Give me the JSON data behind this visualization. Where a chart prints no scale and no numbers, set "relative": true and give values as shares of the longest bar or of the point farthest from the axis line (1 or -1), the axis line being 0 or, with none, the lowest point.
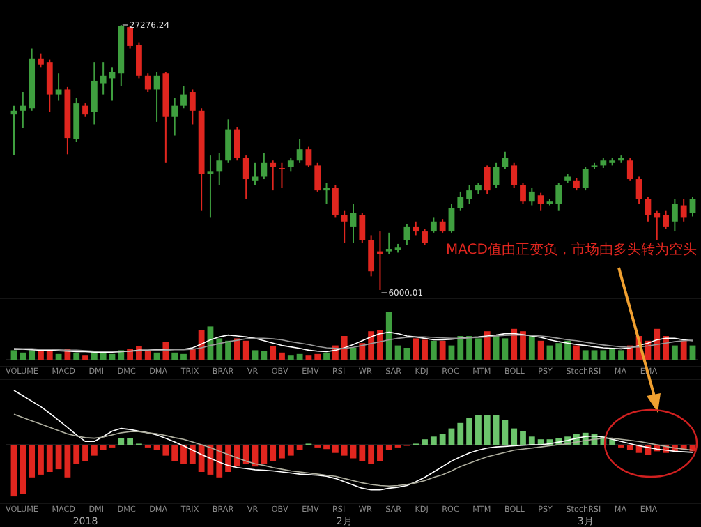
{
  "chart_data": [
    {
      "type": "candlestick",
      "categories": [
        null,
        null,
        null,
        null,
        null,
        null,
        null,
        null,
        null,
        null,
        null,
        null,
        null,
        null,
        null,
        null,
        null,
        null,
        null,
        null,
        null,
        null,
        null,
        null,
        null,
        null,
        null,
        null,
        null,
        null,
        null,
        null,
        null,
        null,
        null,
        null,
        null,
        null,
        null,
        null,
        null,
        null,
        null,
        null,
        null,
        null,
        null,
        null,
        null,
        null,
        null,
        null,
        null,
        null,
        null,
        null,
        null,
        null,
        null,
        null,
        null,
        null,
        null,
        null,
        null,
        null,
        null,
        null,
        null,
        null,
        null,
        null,
        null,
        null,
        null,
        null,
        null
      ],
      "ohlc": [
        [
          20100,
          20800,
          16800,
          20400
        ],
        [
          20400,
          21900,
          19000,
          20800
        ],
        [
          20600,
          25400,
          20400,
          24600
        ],
        [
          24600,
          25000,
          23900,
          24100
        ],
        [
          24300,
          24500,
          20300,
          21700
        ],
        [
          21700,
          23400,
          21200,
          22100
        ],
        [
          22100,
          22300,
          16900,
          18200
        ],
        [
          18100,
          21400,
          17900,
          21000
        ],
        [
          20800,
          21000,
          19900,
          20100
        ],
        [
          20300,
          24300,
          19300,
          22800
        ],
        [
          22600,
          24300,
          21700,
          23200
        ],
        [
          23000,
          23900,
          21200,
          23500
        ],
        [
          23400,
          27276.24,
          22400,
          27200
        ],
        [
          27100,
          27200,
          25400,
          25600
        ],
        [
          25700,
          25900,
          23000,
          23200
        ],
        [
          23200,
          23400,
          21900,
          22100
        ],
        [
          22100,
          23500,
          19500,
          23200
        ],
        [
          23400,
          23500,
          16200,
          19900
        ],
        [
          19900,
          21400,
          18400,
          20800
        ],
        [
          20800,
          22400,
          20600,
          21700
        ],
        [
          21900,
          22100,
          19300,
          20400
        ],
        [
          20400,
          20600,
          12400,
          15300
        ],
        [
          15300,
          16800,
          11800,
          15500
        ],
        [
          15500,
          17000,
          14400,
          16400
        ],
        [
          16400,
          19700,
          16200,
          18900
        ],
        [
          18900,
          19100,
          16400,
          16600
        ],
        [
          16600,
          16800,
          13300,
          14900
        ],
        [
          14800,
          16200,
          14400,
          15100
        ],
        [
          15100,
          17000,
          14900,
          16200
        ],
        [
          16200,
          16400,
          14000,
          15900
        ],
        [
          15800,
          16200,
          14200,
          15700
        ],
        [
          15900,
          16600,
          15500,
          16400
        ],
        [
          16400,
          18100,
          16200,
          17300
        ],
        [
          17300,
          17500,
          15900,
          16000
        ],
        [
          16000,
          16200,
          13900,
          14000
        ],
        [
          14000,
          14600,
          12900,
          14200
        ],
        [
          14200,
          14400,
          11800,
          12000
        ],
        [
          12000,
          12400,
          9800,
          11500
        ],
        [
          11100,
          12900,
          9800,
          12200
        ],
        [
          12000,
          12200,
          9800,
          10000
        ],
        [
          10000,
          10400,
          7100,
          7500
        ],
        [
          9100,
          10700,
          6000.01,
          8900
        ],
        [
          9100,
          10600,
          8900,
          9300
        ],
        [
          9200,
          9700,
          9000,
          9400
        ],
        [
          10000,
          11300,
          9600,
          11100
        ],
        [
          11100,
          11500,
          10400,
          10700
        ],
        [
          10700,
          10900,
          9600,
          9800
        ],
        [
          10700,
          11800,
          10600,
          11500
        ],
        [
          11500,
          11700,
          10600,
          10700
        ],
        [
          10700,
          12900,
          10600,
          12600
        ],
        [
          12600,
          13900,
          12400,
          13500
        ],
        [
          13300,
          14400,
          12900,
          14000
        ],
        [
          14000,
          14600,
          13700,
          14400
        ],
        [
          15900,
          16000,
          13700,
          14000
        ],
        [
          14400,
          16200,
          14200,
          15900
        ],
        [
          15900,
          17100,
          15700,
          16600
        ],
        [
          16000,
          16200,
          14200,
          14400
        ],
        [
          14400,
          14600,
          12900,
          13100
        ],
        [
          13100,
          14200,
          12800,
          13900
        ],
        [
          13600,
          13800,
          12400,
          12900
        ],
        [
          12900,
          13300,
          12800,
          13100
        ],
        [
          12900,
          14600,
          12400,
          14400
        ],
        [
          14800,
          15300,
          14600,
          15100
        ],
        [
          14800,
          15000,
          14000,
          14200
        ],
        [
          14200,
          15900,
          14000,
          15700
        ],
        [
          15900,
          16200,
          15700,
          16000
        ],
        [
          16000,
          16600,
          15800,
          16400
        ],
        [
          16200,
          16600,
          16000,
          16400
        ],
        [
          16400,
          16800,
          16200,
          16600
        ],
        [
          16400,
          16600,
          14800,
          14900
        ],
        [
          14900,
          15100,
          12900,
          13300
        ],
        [
          13300,
          13500,
          11500,
          12000
        ],
        [
          12200,
          12400,
          10000,
          11800
        ],
        [
          12000,
          12400,
          10900,
          11100
        ],
        [
          11500,
          13300,
          10700,
          12900
        ],
        [
          12800,
          13300,
          11500,
          11800
        ],
        [
          12200,
          13500,
          11900,
          13300
        ]
      ],
      "colors": [
        "#3f9f3f",
        "#3f9f3f",
        "#3f9f3f",
        "#e0261f",
        "#e0261f",
        "#3f9f3f",
        "#e0261f",
        "#3f9f3f",
        "#e0261f",
        "#3f9f3f",
        "#3f9f3f",
        "#3f9f3f",
        "#3f9f3f",
        "#e0261f",
        "#e0261f",
        "#e0261f",
        "#3f9f3f",
        "#e0261f",
        "#3f9f3f",
        "#3f9f3f",
        "#e0261f",
        "#e0261f",
        "#3f9f3f",
        "#3f9f3f",
        "#3f9f3f",
        "#e0261f",
        "#e0261f",
        "#3f9f3f",
        "#3f9f3f",
        "#e0261f",
        "#e0261f",
        "#3f9f3f",
        "#3f9f3f",
        "#e0261f",
        "#e0261f",
        "#3f9f3f",
        "#e0261f",
        "#e0261f",
        "#3f9f3f",
        "#e0261f",
        "#e0261f",
        "#e0261f",
        "#3f9f3f",
        "#3f9f3f",
        "#3f9f3f",
        "#e0261f",
        "#e0261f",
        "#3f9f3f",
        "#e0261f",
        "#3f9f3f",
        "#3f9f3f",
        "#3f9f3f",
        "#3f9f3f",
        "#e0261f",
        "#3f9f3f",
        "#3f9f3f",
        "#e0261f",
        "#e0261f",
        "#3f9f3f",
        "#e0261f",
        "#3f9f3f",
        "#3f9f3f",
        "#3f9f3f",
        "#e0261f",
        "#3f9f3f",
        "#3f9f3f",
        "#3f9f3f",
        "#3f9f3f",
        "#3f9f3f",
        "#e0261f",
        "#e0261f",
        "#e0261f",
        "#e0261f",
        "#e0261f",
        "#3f9f3f",
        "#e0261f",
        "#3f9f3f"
      ],
      "annotations": [
        "27276.24",
        "6000.01",
        "MACD值由正变负，市场由多头转为空头"
      ]
    },
    {
      "type": "bar",
      "relative": true,
      "categories": [
        null,
        null,
        null,
        null,
        null,
        null,
        null,
        null,
        null,
        null,
        null,
        null,
        null,
        null,
        null,
        null,
        null,
        null,
        null,
        null,
        null,
        null,
        null,
        null,
        null,
        null,
        null,
        null,
        null,
        null,
        null,
        null,
        null,
        null,
        null,
        null,
        null,
        null,
        null,
        null,
        null,
        null,
        null,
        null,
        null,
        null,
        null,
        null,
        null,
        null,
        null,
        null,
        null,
        null,
        null,
        null,
        null,
        null,
        null,
        null,
        null,
        null,
        null,
        null,
        null,
        null,
        null,
        null,
        null,
        null,
        null,
        null,
        null,
        null,
        null,
        null,
        null
      ],
      "series": [
        {
          "type": "bar",
          "values": [
            0.2,
            0.15,
            0.2,
            0.2,
            0.18,
            0.12,
            0.22,
            0.15,
            0.1,
            0.18,
            0.15,
            0.12,
            0.2,
            0.22,
            0.28,
            0.2,
            0.15,
            0.38,
            0.15,
            0.12,
            0.22,
            0.62,
            0.7,
            0.45,
            0.4,
            0.45,
            0.4,
            0.2,
            0.18,
            0.28,
            0.15,
            0.1,
            0.12,
            0.1,
            0.12,
            0.15,
            0.3,
            0.5,
            0.25,
            0.35,
            0.6,
            0.62,
            1,
            0.3,
            0.25,
            0.45,
            0.42,
            0.4,
            0.4,
            0.3,
            0.5,
            0.5,
            0.45,
            0.6,
            0.5,
            0.45,
            0.65,
            0.6,
            0.5,
            0.4,
            0.3,
            0.35,
            0.4,
            0.3,
            0.2,
            0.2,
            0.2,
            0.25,
            0.2,
            0.3,
            0.5,
            0.4,
            0.65,
            0.5,
            0.3,
            0.4,
            0.3
          ],
          "colors": [
            "#3f9f3f",
            "#3f9f3f",
            "#3f9f3f",
            "#e0261f",
            "#e0261f",
            "#3f9f3f",
            "#e0261f",
            "#3f9f3f",
            "#e0261f",
            "#3f9f3f",
            "#3f9f3f",
            "#3f9f3f",
            "#3f9f3f",
            "#e0261f",
            "#e0261f",
            "#e0261f",
            "#3f9f3f",
            "#e0261f",
            "#3f9f3f",
            "#3f9f3f",
            "#e0261f",
            "#e0261f",
            "#3f9f3f",
            "#3f9f3f",
            "#3f9f3f",
            "#e0261f",
            "#e0261f",
            "#3f9f3f",
            "#3f9f3f",
            "#e0261f",
            "#e0261f",
            "#3f9f3f",
            "#3f9f3f",
            "#e0261f",
            "#e0261f",
            "#3f9f3f",
            "#e0261f",
            "#e0261f",
            "#3f9f3f",
            "#e0261f",
            "#e0261f",
            "#e0261f",
            "#3f9f3f",
            "#3f9f3f",
            "#3f9f3f",
            "#e0261f",
            "#e0261f",
            "#3f9f3f",
            "#e0261f",
            "#3f9f3f",
            "#3f9f3f",
            "#3f9f3f",
            "#3f9f3f",
            "#e0261f",
            "#3f9f3f",
            "#3f9f3f",
            "#e0261f",
            "#e0261f",
            "#3f9f3f",
            "#e0261f",
            "#3f9f3f",
            "#3f9f3f",
            "#3f9f3f",
            "#e0261f",
            "#3f9f3f",
            "#3f9f3f",
            "#3f9f3f",
            "#3f9f3f",
            "#3f9f3f",
            "#e0261f",
            "#e0261f",
            "#e0261f",
            "#e0261f",
            "#e0261f",
            "#3f9f3f",
            "#e0261f",
            "#3f9f3f"
          ]
        },
        {
          "type": "line",
          "color": "#ffffff",
          "values": [
            0.22,
            0.22,
            0.21,
            0.2,
            0.2,
            0.19,
            0.18,
            0.17,
            0.17,
            0.16,
            0.16,
            0.16,
            0.17,
            0.18,
            0.2,
            0.2,
            0.21,
            0.22,
            0.22,
            0.22,
            0.25,
            0.33,
            0.42,
            0.48,
            0.52,
            0.5,
            0.48,
            0.45,
            0.4,
            0.35,
            0.3,
            0.27,
            0.24,
            0.2,
            0.18,
            0.17,
            0.2,
            0.25,
            0.32,
            0.4,
            0.48,
            0.55,
            0.58,
            0.55,
            0.5,
            0.48,
            0.45,
            0.42,
            0.42,
            0.43,
            0.45,
            0.47,
            0.48,
            0.5,
            0.52,
            0.55,
            0.55,
            0.53,
            0.5,
            0.47,
            0.42,
            0.38,
            0.35,
            0.32,
            0.3,
            0.27,
            0.25,
            0.24,
            0.23,
            0.25,
            0.3,
            0.35,
            0.42,
            0.45,
            0.45,
            0.42,
            0.4
          ]
        },
        {
          "type": "line",
          "color": "#9a9a9a",
          "values": [
            0.24,
            0.23,
            0.23,
            0.22,
            0.22,
            0.21,
            0.2,
            0.2,
            0.19,
            0.18,
            0.18,
            0.18,
            0.18,
            0.18,
            0.19,
            0.19,
            0.2,
            0.2,
            0.21,
            0.21,
            0.22,
            0.25,
            0.3,
            0.34,
            0.38,
            0.41,
            0.44,
            0.45,
            0.45,
            0.44,
            0.42,
            0.38,
            0.35,
            0.32,
            0.28,
            0.25,
            0.24,
            0.24,
            0.26,
            0.3,
            0.34,
            0.38,
            0.42,
            0.45,
            0.47,
            0.48,
            0.48,
            0.47,
            0.46,
            0.45,
            0.45,
            0.46,
            0.47,
            0.48,
            0.5,
            0.51,
            0.52,
            0.52,
            0.51,
            0.5,
            0.48,
            0.45,
            0.42,
            0.4,
            0.37,
            0.34,
            0.31,
            0.29,
            0.27,
            0.26,
            0.27,
            0.29,
            0.32,
            0.35,
            0.38,
            0.4,
            0.41
          ]
        }
      ],
      "annotations": [
        "VOLUME MACD DMI DMC DMA TRIX BRAR VR OBV EMV RSI WR SAR KDJ ROC MTM BOLL PSY StochRSI MA EMA"
      ]
    },
    {
      "type": "bar",
      "relative": true,
      "categories": [
        null,
        null,
        null,
        null,
        null,
        null,
        null,
        null,
        "2018",
        null,
        null,
        null,
        null,
        null,
        null,
        null,
        null,
        null,
        null,
        null,
        null,
        null,
        null,
        null,
        null,
        null,
        null,
        null,
        null,
        null,
        null,
        null,
        null,
        null,
        null,
        null,
        null,
        "2月",
        null,
        null,
        null,
        null,
        null,
        null,
        null,
        null,
        null,
        null,
        null,
        null,
        null,
        null,
        null,
        null,
        null,
        null,
        null,
        null,
        null,
        null,
        null,
        null,
        null,
        null,
        "3月",
        null,
        null,
        null,
        null,
        null,
        null,
        null,
        null,
        null,
        null,
        null,
        null
      ],
      "series": [
        {
          "type": "bar",
          "values": [
            -0.95,
            -0.9,
            -0.6,
            -0.55,
            -0.5,
            -0.45,
            -0.6,
            -0.35,
            -0.3,
            -0.2,
            -0.1,
            -0.05,
            0.12,
            0.12,
            0.02,
            -0.05,
            -0.1,
            -0.2,
            -0.3,
            -0.35,
            -0.35,
            -0.5,
            -0.55,
            -0.6,
            -0.5,
            -0.4,
            -0.35,
            -0.4,
            -0.35,
            -0.3,
            -0.25,
            -0.2,
            -0.1,
            0.02,
            -0.05,
            -0.08,
            -0.15,
            -0.2,
            -0.25,
            -0.3,
            -0.35,
            -0.3,
            -0.1,
            -0.05,
            -0.02,
            0.02,
            0.1,
            0.15,
            0.2,
            0.3,
            0.4,
            0.5,
            0.55,
            0.55,
            0.55,
            0.45,
            0.3,
            0.25,
            0.15,
            0.1,
            0.1,
            0.12,
            0.15,
            0.2,
            0.22,
            0.2,
            0.15,
            0.1,
            -0.05,
            -0.1,
            -0.15,
            -0.18,
            -0.12,
            -0.15,
            -0.12,
            -0.1,
            -0.12
          ],
          "colors": [
            "#e0261f",
            "#e0261f",
            "#e0261f",
            "#e0261f",
            "#e0261f",
            "#e0261f",
            "#e0261f",
            "#e0261f",
            "#e0261f",
            "#e0261f",
            "#e0261f",
            "#e0261f",
            "#6cc46c",
            "#6cc46c",
            "#6cc46c",
            "#e0261f",
            "#e0261f",
            "#e0261f",
            "#e0261f",
            "#e0261f",
            "#e0261f",
            "#e0261f",
            "#e0261f",
            "#e0261f",
            "#e0261f",
            "#e0261f",
            "#e0261f",
            "#e0261f",
            "#e0261f",
            "#e0261f",
            "#e0261f",
            "#e0261f",
            "#e0261f",
            "#6cc46c",
            "#e0261f",
            "#e0261f",
            "#e0261f",
            "#e0261f",
            "#e0261f",
            "#e0261f",
            "#e0261f",
            "#e0261f",
            "#e0261f",
            "#e0261f",
            "#e0261f",
            "#6cc46c",
            "#6cc46c",
            "#6cc46c",
            "#6cc46c",
            "#6cc46c",
            "#6cc46c",
            "#6cc46c",
            "#6cc46c",
            "#6cc46c",
            "#6cc46c",
            "#6cc46c",
            "#6cc46c",
            "#6cc46c",
            "#6cc46c",
            "#6cc46c",
            "#6cc46c",
            "#6cc46c",
            "#6cc46c",
            "#6cc46c",
            "#6cc46c",
            "#6cc46c",
            "#6cc46c",
            "#6cc46c",
            "#e0261f",
            "#e0261f",
            "#e0261f",
            "#e0261f",
            "#e0261f",
            "#e0261f",
            "#e0261f",
            "#e0261f",
            "#e0261f"
          ]
        },
        {
          "type": "line",
          "color": "#ffffff",
          "values": [
            1,
            0.9,
            0.8,
            0.7,
            0.58,
            0.45,
            0.32,
            0.18,
            0.06,
            0.06,
            0.15,
            0.25,
            0.3,
            0.28,
            0.25,
            0.22,
            0.18,
            0.12,
            0.05,
            -0.02,
            -0.1,
            -0.18,
            -0.25,
            -0.32,
            -0.38,
            -0.42,
            -0.44,
            -0.46,
            -0.47,
            -0.48,
            -0.5,
            -0.52,
            -0.54,
            -0.55,
            -0.56,
            -0.58,
            -0.62,
            -0.68,
            -0.74,
            -0.8,
            -0.83,
            -0.83,
            -0.8,
            -0.78,
            -0.75,
            -0.68,
            -0.6,
            -0.5,
            -0.4,
            -0.3,
            -0.22,
            -0.15,
            -0.1,
            -0.06,
            -0.04,
            -0.03,
            -0.02,
            -0.01,
            0,
            0,
            0.02,
            0.05,
            0.08,
            0.12,
            0.15,
            0.16,
            0.14,
            0.1,
            0.06,
            0.02,
            -0.02,
            -0.05,
            -0.08,
            -0.1,
            -0.12,
            -0.13,
            -0.14
          ]
        },
        {
          "type": "line",
          "color": "#b0b0a0",
          "values": [
            0.56,
            0.5,
            0.44,
            0.38,
            0.32,
            0.26,
            0.2,
            0.16,
            0.13,
            0.12,
            0.14,
            0.18,
            0.22,
            0.24,
            0.24,
            0.22,
            0.2,
            0.17,
            0.13,
            0.1,
            0.05,
            0,
            -0.05,
            -0.12,
            -0.18,
            -0.24,
            -0.3,
            -0.35,
            -0.38,
            -0.42,
            -0.45,
            -0.48,
            -0.5,
            -0.52,
            -0.54,
            -0.56,
            -0.58,
            -0.62,
            -0.66,
            -0.7,
            -0.73,
            -0.75,
            -0.76,
            -0.75,
            -0.73,
            -0.7,
            -0.66,
            -0.6,
            -0.55,
            -0.48,
            -0.4,
            -0.34,
            -0.28,
            -0.22,
            -0.18,
            -0.14,
            -0.1,
            -0.08,
            -0.06,
            -0.04,
            -0.02,
            0,
            0.02,
            0.05,
            0.08,
            0.1,
            0.12,
            0.12,
            0.1,
            0.08,
            0.06,
            0.03,
            0,
            -0.03,
            -0.06,
            -0.08,
            -0.1
          ]
        }
      ],
      "annotations": [
        "VOLUME MACD DMI DMC DMA TRIX BRAR VR OBV EMV RSI WR SAR KDJ ROC MTM BOLL PSY StochRSI MA EMA"
      ]
    }
  ]
}
